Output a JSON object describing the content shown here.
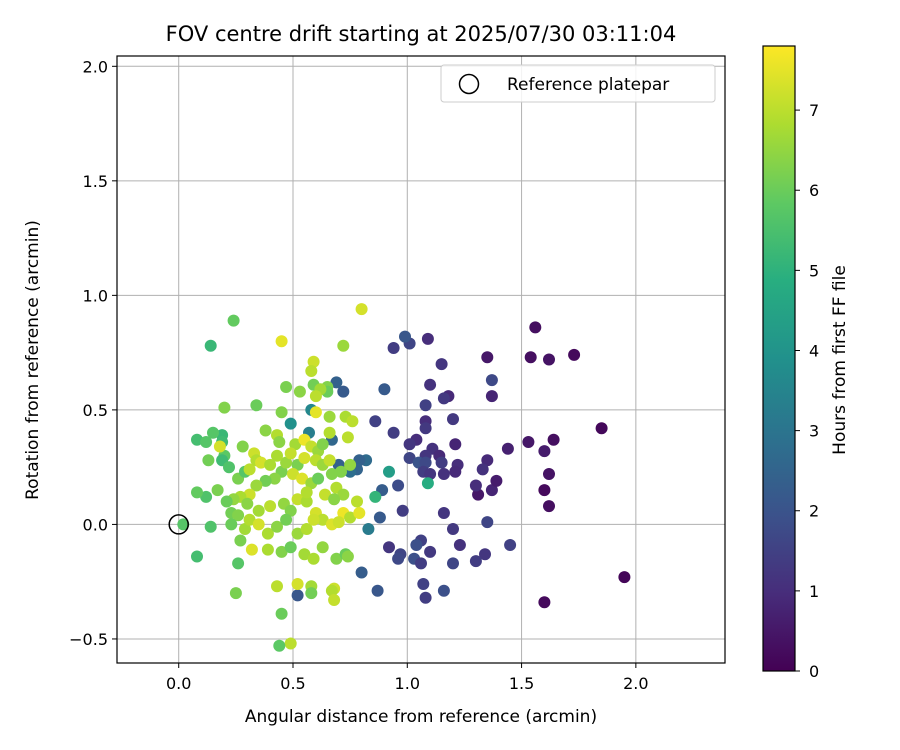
{
  "chart_data": {
    "type": "scatter",
    "title": "FOV centre drift starting at 2025/07/30 03:11:04",
    "xlabel": "Angular distance from reference (arcmin)",
    "ylabel": "Rotation from reference (arcmin)",
    "xlim": [
      -0.27,
      2.39
    ],
    "ylim": [
      -0.605,
      2.045
    ],
    "x_ticks": [
      0.0,
      0.5,
      1.0,
      1.5,
      2.0
    ],
    "x_tick_labels": [
      "0.0",
      "0.5",
      "1.0",
      "1.5",
      "2.0"
    ],
    "y_ticks": [
      -0.5,
      0.0,
      0.5,
      1.0,
      1.5,
      2.0
    ],
    "y_tick_labels": [
      "−0.5",
      "0.0",
      "0.5",
      "1.0",
      "1.5",
      "2.0"
    ],
    "grid": true,
    "legend": {
      "position": "top-right",
      "label": "Reference platepar"
    },
    "colorbar": {
      "label": "Hours from first FF file",
      "range": [
        0,
        7.8
      ],
      "ticks": [
        0,
        1,
        2,
        3,
        4,
        5,
        6,
        7
      ],
      "colormap": "viridis"
    },
    "reference_point": [
      0.0,
      0.0
    ],
    "points": [
      [
        1.56,
        0.86,
        0.3
      ],
      [
        1.73,
        0.74,
        0.2
      ],
      [
        1.85,
        0.42,
        0.15
      ],
      [
        1.95,
        -0.23,
        0.1
      ],
      [
        1.6,
        -0.34,
        0.2
      ],
      [
        1.54,
        0.73,
        0.3
      ],
      [
        1.62,
        0.72,
        0.4
      ],
      [
        1.35,
        0.73,
        0.5
      ],
      [
        1.37,
        0.63,
        1.7
      ],
      [
        1.37,
        0.56,
        0.8
      ],
      [
        1.53,
        0.36,
        0.5
      ],
      [
        1.64,
        0.37,
        0.3
      ],
      [
        1.6,
        0.32,
        0.6
      ],
      [
        1.62,
        0.22,
        0.4
      ],
      [
        1.6,
        0.15,
        0.2
      ],
      [
        1.62,
        0.08,
        0.3
      ],
      [
        1.44,
        0.33,
        0.7
      ],
      [
        1.35,
        0.28,
        0.9
      ],
      [
        1.33,
        0.24,
        1.1
      ],
      [
        1.37,
        0.15,
        0.8
      ],
      [
        1.39,
        0.19,
        0.6
      ],
      [
        1.31,
        0.13,
        0.5
      ],
      [
        1.3,
        0.17,
        1.0
      ],
      [
        1.45,
        -0.09,
        1.5
      ],
      [
        1.35,
        0.01,
        1.6
      ],
      [
        1.34,
        -0.13,
        1.2
      ],
      [
        1.3,
        -0.16,
        1.4
      ],
      [
        1.09,
        0.81,
        1.0
      ],
      [
        1.01,
        0.79,
        1.6
      ],
      [
        0.99,
        0.82,
        2.1
      ],
      [
        0.94,
        0.77,
        1.4
      ],
      [
        1.15,
        0.7,
        1.2
      ],
      [
        1.1,
        0.61,
        1.1
      ],
      [
        1.18,
        0.56,
        0.9
      ],
      [
        1.16,
        0.55,
        1.3
      ],
      [
        1.08,
        0.52,
        1.5
      ],
      [
        1.2,
        0.46,
        1.3
      ],
      [
        1.08,
        0.45,
        1.0
      ],
      [
        1.08,
        0.42,
        1.3
      ],
      [
        1.04,
        0.37,
        1.0
      ],
      [
        1.01,
        0.35,
        1.2
      ],
      [
        1.11,
        0.33,
        1.1
      ],
      [
        1.08,
        0.3,
        1.2
      ],
      [
        1.14,
        0.3,
        0.9
      ],
      [
        1.15,
        0.27,
        1.4
      ],
      [
        1.21,
        0.35,
        0.8
      ],
      [
        1.22,
        0.26,
        1.0
      ],
      [
        1.21,
        0.23,
        0.9
      ],
      [
        1.01,
        0.29,
        1.6
      ],
      [
        1.05,
        0.27,
        2.0
      ],
      [
        1.08,
        0.27,
        1.7
      ],
      [
        1.07,
        0.23,
        1.4
      ],
      [
        1.1,
        0.22,
        1.2
      ],
      [
        1.16,
        0.22,
        1.1
      ],
      [
        1.09,
        0.18,
        4.8
      ],
      [
        0.96,
        0.17,
        1.8
      ],
      [
        0.89,
        0.15,
        2.3
      ],
      [
        0.92,
        0.23,
        4.3
      ],
      [
        0.94,
        0.4,
        1.4
      ],
      [
        0.86,
        0.45,
        1.5
      ],
      [
        0.9,
        0.59,
        2.2
      ],
      [
        0.98,
        0.06,
        1.4
      ],
      [
        1.16,
        0.05,
        1.2
      ],
      [
        1.2,
        -0.02,
        1.3
      ],
      [
        1.23,
        -0.09,
        1.1
      ],
      [
        1.06,
        -0.07,
        1.5
      ],
      [
        1.04,
        -0.09,
        1.9
      ],
      [
        1.1,
        -0.12,
        1.3
      ],
      [
        0.97,
        -0.13,
        1.6
      ],
      [
        0.92,
        -0.1,
        1.2
      ],
      [
        0.96,
        -0.15,
        1.7
      ],
      [
        1.03,
        -0.15,
        1.9
      ],
      [
        1.06,
        -0.17,
        1.4
      ],
      [
        1.2,
        -0.17,
        1.6
      ],
      [
        1.07,
        -0.26,
        1.5
      ],
      [
        1.08,
        -0.32,
        1.4
      ],
      [
        1.16,
        -0.29,
        1.9
      ],
      [
        0.87,
        -0.29,
        2.1
      ],
      [
        0.8,
        -0.21,
        2.3
      ],
      [
        0.88,
        0.03,
        2.2
      ],
      [
        0.83,
        -0.02,
        3.2
      ],
      [
        0.82,
        0.28,
        2.7
      ],
      [
        0.79,
        0.28,
        2.4
      ],
      [
        0.78,
        0.24,
        2.5
      ],
      [
        0.75,
        0.23,
        2.8
      ],
      [
        0.72,
        0.58,
        2.2
      ],
      [
        0.69,
        0.62,
        2.4
      ],
      [
        0.67,
        0.37,
        2.6
      ],
      [
        0.7,
        0.26,
        2.4
      ],
      [
        0.52,
        -0.31,
        2.1
      ],
      [
        0.86,
        0.12,
        5.1
      ],
      [
        0.58,
        0.5,
        3.6
      ],
      [
        0.57,
        0.4,
        3.3
      ],
      [
        0.49,
        0.44,
        3.9
      ],
      [
        0.24,
        0.89,
        5.9
      ],
      [
        0.14,
        0.78,
        5.2
      ],
      [
        0.45,
        0.8,
        7.5
      ],
      [
        0.8,
        0.94,
        7.3
      ],
      [
        0.59,
        0.71,
        7.2
      ],
      [
        0.72,
        0.78,
        6.6
      ],
      [
        0.58,
        0.67,
        7.0
      ],
      [
        0.59,
        0.61,
        6.1
      ],
      [
        0.65,
        0.6,
        6.3
      ],
      [
        0.65,
        0.58,
        6.0
      ],
      [
        0.62,
        0.59,
        6.7
      ],
      [
        0.47,
        0.6,
        6.2
      ],
      [
        0.53,
        0.58,
        6.4
      ],
      [
        0.6,
        0.56,
        7.0
      ],
      [
        0.2,
        0.51,
        6.3
      ],
      [
        0.34,
        0.52,
        6.0
      ],
      [
        0.45,
        0.49,
        6.3
      ],
      [
        0.6,
        0.49,
        7.5
      ],
      [
        0.66,
        0.47,
        6.6
      ],
      [
        0.73,
        0.47,
        6.8
      ],
      [
        0.76,
        0.45,
        7.0
      ],
      [
        0.66,
        0.4,
        6.9
      ],
      [
        0.74,
        0.38,
        7.0
      ],
      [
        0.08,
        0.37,
        5.4
      ],
      [
        0.12,
        0.36,
        5.7
      ],
      [
        0.19,
        0.39,
        5.2
      ],
      [
        0.19,
        0.36,
        5.3
      ],
      [
        0.2,
        0.3,
        5.8
      ],
      [
        0.28,
        0.34,
        6.3
      ],
      [
        0.33,
        0.31,
        7.2
      ],
      [
        0.38,
        0.41,
        6.4
      ],
      [
        0.43,
        0.39,
        6.9
      ],
      [
        0.44,
        0.36,
        6.4
      ],
      [
        0.51,
        0.35,
        6.7
      ],
      [
        0.55,
        0.37,
        7.6
      ],
      [
        0.58,
        0.34,
        7.1
      ],
      [
        0.61,
        0.32,
        6.6
      ],
      [
        0.63,
        0.35,
        6.3
      ],
      [
        0.13,
        0.28,
        6.1
      ],
      [
        0.19,
        0.28,
        5.3
      ],
      [
        0.22,
        0.25,
        5.6
      ],
      [
        0.26,
        0.2,
        6.2
      ],
      [
        0.29,
        0.23,
        5.7
      ],
      [
        0.31,
        0.24,
        7.0
      ],
      [
        0.34,
        0.28,
        6.9
      ],
      [
        0.36,
        0.27,
        7.3
      ],
      [
        0.4,
        0.26,
        6.8
      ],
      [
        0.45,
        0.23,
        6.2
      ],
      [
        0.47,
        0.27,
        6.6
      ],
      [
        0.52,
        0.26,
        6.2
      ],
      [
        0.55,
        0.29,
        7.3
      ],
      [
        0.6,
        0.28,
        7.0
      ],
      [
        0.63,
        0.26,
        6.6
      ],
      [
        0.66,
        0.28,
        7.1
      ],
      [
        0.71,
        0.23,
        6.3
      ],
      [
        0.75,
        0.26,
        6.5
      ],
      [
        0.5,
        0.22,
        7.2
      ],
      [
        0.54,
        0.2,
        7.4
      ],
      [
        0.58,
        0.18,
        6.6
      ],
      [
        0.61,
        0.2,
        6.0
      ],
      [
        0.67,
        0.22,
        6.3
      ],
      [
        0.69,
        0.16,
        6.9
      ],
      [
        0.64,
        0.13,
        7.1
      ],
      [
        0.42,
        0.2,
        6.4
      ],
      [
        0.38,
        0.19,
        6.1
      ],
      [
        0.34,
        0.17,
        6.6
      ],
      [
        0.31,
        0.13,
        7.2
      ],
      [
        0.27,
        0.12,
        6.8
      ],
      [
        0.24,
        0.11,
        6.5
      ],
      [
        0.21,
        0.1,
        6.0
      ],
      [
        0.17,
        0.15,
        6.2
      ],
      [
        0.12,
        0.12,
        5.6
      ],
      [
        0.08,
        0.14,
        5.9
      ],
      [
        0.3,
        0.09,
        6.4
      ],
      [
        0.35,
        0.06,
        6.7
      ],
      [
        0.4,
        0.08,
        7.0
      ],
      [
        0.46,
        0.09,
        6.5
      ],
      [
        0.49,
        0.06,
        6.3
      ],
      [
        0.52,
        0.11,
        7.1
      ],
      [
        0.56,
        0.1,
        6.8
      ],
      [
        0.6,
        0.05,
        7.3
      ],
      [
        0.63,
        0.02,
        7.0
      ],
      [
        0.67,
        0.0,
        7.4
      ],
      [
        0.72,
        0.05,
        7.6
      ],
      [
        0.7,
        0.01,
        7.2
      ],
      [
        0.75,
        0.03,
        6.9
      ],
      [
        0.78,
        0.1,
        7.0
      ],
      [
        0.72,
        0.13,
        6.6
      ],
      [
        0.68,
        0.11,
        6.4
      ],
      [
        0.23,
        0.05,
        6.1
      ],
      [
        0.26,
        0.04,
        6.3
      ],
      [
        0.29,
        -0.02,
        6.7
      ],
      [
        0.31,
        0.02,
        6.9
      ],
      [
        0.35,
        0.0,
        7.3
      ],
      [
        0.39,
        -0.04,
        6.8
      ],
      [
        0.43,
        -0.01,
        6.4
      ],
      [
        0.47,
        0.02,
        6.1
      ],
      [
        0.52,
        -0.04,
        6.6
      ],
      [
        0.56,
        -0.02,
        6.9
      ],
      [
        0.59,
        0.02,
        7.2
      ],
      [
        0.63,
        -0.1,
        6.5
      ],
      [
        0.14,
        -0.01,
        5.6
      ],
      [
        0.23,
        0.0,
        6.0
      ],
      [
        0.27,
        -0.07,
        6.2
      ],
      [
        0.32,
        -0.11,
        7.4
      ],
      [
        0.39,
        -0.11,
        6.8
      ],
      [
        0.45,
        -0.12,
        6.3
      ],
      [
        0.49,
        -0.1,
        6.0
      ],
      [
        0.55,
        -0.13,
        6.7
      ],
      [
        0.59,
        -0.15,
        6.8
      ],
      [
        0.69,
        -0.15,
        6.3
      ],
      [
        0.73,
        -0.13,
        6.0
      ],
      [
        0.74,
        -0.14,
        6.4
      ],
      [
        0.08,
        -0.14,
        5.4
      ],
      [
        0.02,
        0.0,
        5.7
      ],
      [
        0.26,
        -0.17,
        5.7
      ],
      [
        0.43,
        -0.27,
        7.0
      ],
      [
        0.52,
        -0.26,
        7.3
      ],
      [
        0.58,
        -0.27,
        6.7
      ],
      [
        0.68,
        -0.28,
        7.2
      ],
      [
        0.67,
        -0.29,
        6.9
      ],
      [
        0.68,
        -0.33,
        7.1
      ],
      [
        0.58,
        -0.3,
        6.1
      ],
      [
        0.45,
        -0.39,
        6.0
      ],
      [
        0.25,
        -0.3,
        6.2
      ],
      [
        0.49,
        -0.52,
        7.0
      ],
      [
        0.44,
        -0.53,
        5.8
      ],
      [
        0.15,
        0.4,
        5.7
      ],
      [
        0.18,
        0.34,
        7.3
      ],
      [
        0.43,
        0.3,
        6.8
      ],
      [
        0.49,
        0.31,
        7.1
      ],
      [
        0.56,
        0.14,
        6.9
      ],
      [
        0.79,
        0.05,
        7.5
      ]
    ]
  }
}
